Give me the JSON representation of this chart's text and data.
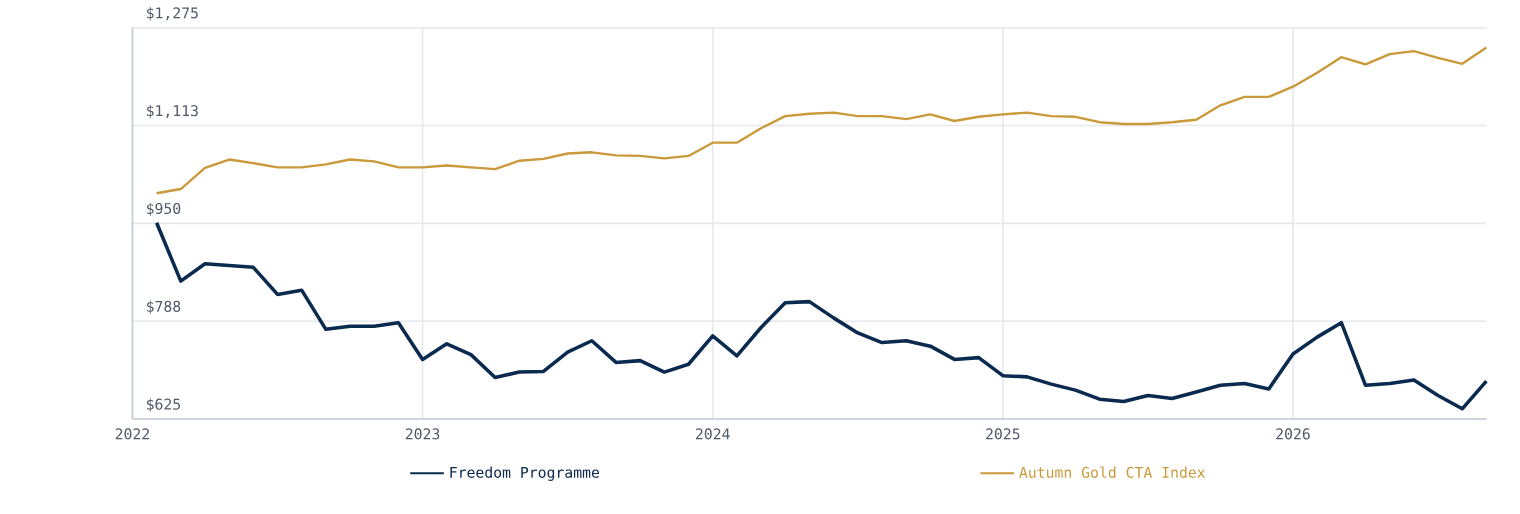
{
  "chart_data": {
    "type": "line",
    "x": [
      "2022-02",
      "2022-03",
      "2022-04",
      "2022-05",
      "2022-06",
      "2022-07",
      "2022-08",
      "2022-09",
      "2022-10",
      "2022-11",
      "2022-12",
      "2023-01",
      "2023-02",
      "2023-03",
      "2023-04",
      "2023-05",
      "2023-06",
      "2023-07",
      "2023-08",
      "2023-09",
      "2023-10",
      "2023-11",
      "2023-12",
      "2024-01",
      "2024-02",
      "2024-03",
      "2024-04",
      "2024-05",
      "2024-06",
      "2024-07",
      "2024-08",
      "2024-09",
      "2024-10",
      "2024-11",
      "2024-12",
      "2025-01",
      "2025-02",
      "2025-03",
      "2025-04",
      "2025-05",
      "2025-06",
      "2025-07",
      "2025-08",
      "2025-09",
      "2025-10",
      "2025-11",
      "2025-12",
      "2026-01",
      "2026-02",
      "2026-03",
      "2026-04",
      "2026-05",
      "2026-06",
      "2026-07",
      "2026-08",
      "2026-09"
    ],
    "series": [
      {
        "name": "Freedom Programme",
        "color": "#0b2a4f",
        "values": [
          951,
          854,
          883,
          880,
          877,
          832,
          839,
          774,
          779,
          779,
          785,
          724,
          750,
          732,
          694,
          703,
          704,
          736,
          755,
          719,
          722,
          703,
          716,
          763,
          730,
          777,
          818,
          820,
          793,
          768,
          752,
          755,
          746,
          724,
          727,
          697,
          695,
          683,
          673,
          658,
          654,
          664,
          659,
          670,
          681,
          684,
          675,
          733,
          761,
          785,
          681,
          684,
          690,
          664,
          642,
          688
        ]
      },
      {
        "name": "Autumn Gold CTA Index",
        "color": "#c9993a",
        "values": [
          1000,
          1007,
          1042,
          1056,
          1050,
          1043,
          1043,
          1048,
          1056,
          1053,
          1043,
          1043,
          1046,
          1043,
          1040,
          1054,
          1057,
          1066,
          1068,
          1063,
          1062,
          1058,
          1062,
          1084,
          1084,
          1108,
          1128,
          1132,
          1134,
          1128,
          1128,
          1123,
          1131,
          1120,
          1127,
          1131,
          1134,
          1128,
          1127,
          1118,
          1115,
          1115,
          1118,
          1122,
          1146,
          1160,
          1160,
          1177,
          1200,
          1226,
          1214,
          1231,
          1236,
          1225,
          1215,
          1242
        ]
      }
    ],
    "xlim": [
      "2022-01",
      "2026-09"
    ],
    "xticks": [
      {
        "value": "2022-01",
        "label": "2022"
      },
      {
        "value": "2023-01",
        "label": "2023"
      },
      {
        "value": "2024-01",
        "label": "2024"
      },
      {
        "value": "2025-01",
        "label": "2025"
      },
      {
        "value": "2026-01",
        "label": "2026"
      }
    ],
    "ylim": [
      625,
      1275
    ],
    "yticks": [
      {
        "value": 625,
        "label": "$625"
      },
      {
        "value": 787.5,
        "label": "$788"
      },
      {
        "value": 950,
        "label": "$950"
      },
      {
        "value": 1112.5,
        "label": "$1,113"
      },
      {
        "value": 1275,
        "label": "$1,275"
      }
    ],
    "grid": true,
    "legend": "bottom",
    "marker": "none",
    "line_style": "solid"
  }
}
